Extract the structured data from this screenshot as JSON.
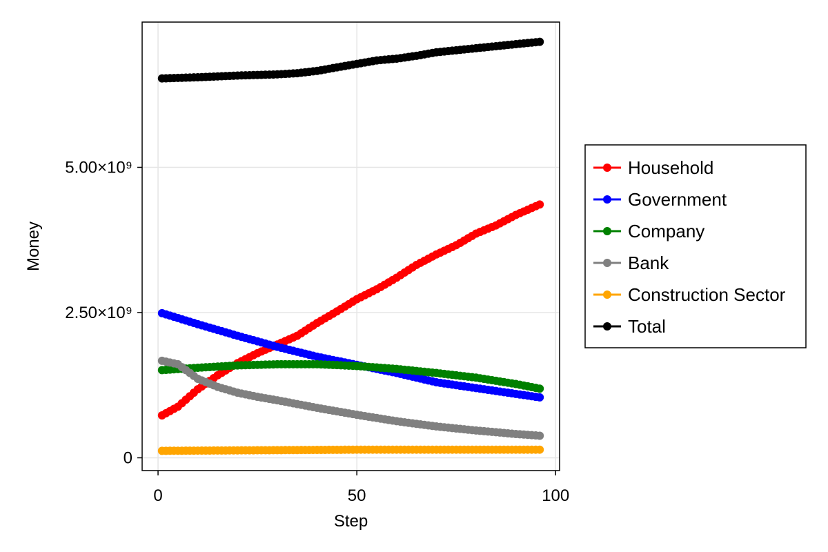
{
  "chart_data": {
    "type": "scatter",
    "xlabel": "Step",
    "ylabel": "Money",
    "xlim": [
      -4,
      101
    ],
    "ylim": [
      -220000000,
      7500000000
    ],
    "x_ticks": [
      {
        "value": 0,
        "label": "0"
      },
      {
        "value": 50,
        "label": "50"
      },
      {
        "value": 100,
        "label": "100"
      }
    ],
    "y_ticks": [
      {
        "value": 0,
        "label": "0"
      },
      {
        "value": 2500000000,
        "label": "2.50×10⁹"
      },
      {
        "value": 5000000000,
        "label": "5.00×10⁹"
      }
    ],
    "grid": true,
    "legend_position": "right",
    "x_range": [
      1,
      96
    ],
    "series": [
      {
        "name": "Household",
        "color": "#ff0000",
        "points": [
          [
            1,
            730000000.0
          ],
          [
            5,
            880000000.0
          ],
          [
            10,
            1180000000.0
          ],
          [
            15,
            1420000000.0
          ],
          [
            20,
            1630000000.0
          ],
          [
            25,
            1800000000.0
          ],
          [
            30,
            1950000000.0
          ],
          [
            35,
            2100000000.0
          ],
          [
            40,
            2320000000.0
          ],
          [
            45,
            2520000000.0
          ],
          [
            50,
            2730000000.0
          ],
          [
            55,
            2900000000.0
          ],
          [
            60,
            3100000000.0
          ],
          [
            65,
            3320000000.0
          ],
          [
            70,
            3500000000.0
          ],
          [
            75,
            3660000000.0
          ],
          [
            80,
            3860000000.0
          ],
          [
            85,
            4000000000.0
          ],
          [
            90,
            4180000000.0
          ],
          [
            96,
            4360000000.0
          ]
        ]
      },
      {
        "name": "Government",
        "color": "#0000ff",
        "points": [
          [
            1,
            2490000000.0
          ],
          [
            10,
            2300000000.0
          ],
          [
            20,
            2100000000.0
          ],
          [
            30,
            1910000000.0
          ],
          [
            40,
            1740000000.0
          ],
          [
            50,
            1600000000.0
          ],
          [
            60,
            1460000000.0
          ],
          [
            70,
            1300000000.0
          ],
          [
            80,
            1200000000.0
          ],
          [
            90,
            1100000000.0
          ],
          [
            96,
            1040000000.0
          ]
        ]
      },
      {
        "name": "Company",
        "color": "#008000",
        "points": [
          [
            1,
            1510000000.0
          ],
          [
            10,
            1550000000.0
          ],
          [
            20,
            1590000000.0
          ],
          [
            30,
            1610000000.0
          ],
          [
            40,
            1610000000.0
          ],
          [
            50,
            1580000000.0
          ],
          [
            60,
            1530000000.0
          ],
          [
            70,
            1460000000.0
          ],
          [
            80,
            1380000000.0
          ],
          [
            90,
            1270000000.0
          ],
          [
            96,
            1190000000.0
          ]
        ]
      },
      {
        "name": "Bank",
        "color": "#808080",
        "points": [
          [
            1,
            1670000000.0
          ],
          [
            5,
            1610000000.0
          ],
          [
            10,
            1360000000.0
          ],
          [
            15,
            1220000000.0
          ],
          [
            20,
            1120000000.0
          ],
          [
            25,
            1050000000.0
          ],
          [
            30,
            990000000.0
          ],
          [
            40,
            860000000.0
          ],
          [
            50,
            740000000.0
          ],
          [
            60,
            630000000.0
          ],
          [
            70,
            540000000.0
          ],
          [
            80,
            470000000.0
          ],
          [
            90,
            410000000.0
          ],
          [
            96,
            380000000.0
          ]
        ]
      },
      {
        "name": "Construction Sector",
        "color": "#ffa500",
        "points": [
          [
            1,
            120000000.0
          ],
          [
            50,
            140000000.0
          ],
          [
            96,
            140000000.0
          ]
        ]
      },
      {
        "name": "Total",
        "color": "#000000",
        "points": [
          [
            1,
            6530000000.0
          ],
          [
            10,
            6550000000.0
          ],
          [
            20,
            6580000000.0
          ],
          [
            30,
            6600000000.0
          ],
          [
            35,
            6620000000.0
          ],
          [
            40,
            6660000000.0
          ],
          [
            45,
            6720000000.0
          ],
          [
            50,
            6780000000.0
          ],
          [
            55,
            6840000000.0
          ],
          [
            60,
            6870000000.0
          ],
          [
            65,
            6920000000.0
          ],
          [
            70,
            6980000000.0
          ],
          [
            80,
            7050000000.0
          ],
          [
            90,
            7120000000.0
          ],
          [
            96,
            7160000000.0
          ]
        ]
      }
    ]
  }
}
